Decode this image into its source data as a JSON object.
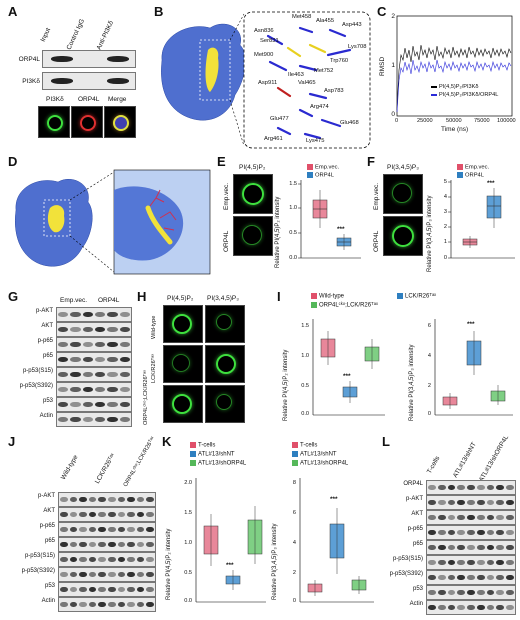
{
  "panels": {
    "A": "A",
    "B": "B",
    "C": "C",
    "D": "D",
    "E": "E",
    "F": "F",
    "G": "G",
    "H": "H",
    "I": "I",
    "J": "J",
    "K": "K",
    "L": "L"
  },
  "panelA": {
    "lanes": [
      "Input",
      "Control IgG",
      "Anti-PI3Kδ"
    ],
    "rows": [
      "ORP4L",
      "PI3Kδ"
    ],
    "micro": [
      "PI3Kδ",
      "ORP4L",
      "Merge"
    ]
  },
  "panelB": {
    "residues": [
      "Met458",
      "Ala455",
      "Asp443",
      "Asn836",
      "Ser831",
      "Lys708",
      "Trp760",
      "Met900",
      "Met752",
      "Ile463",
      "Val465",
      "Asp911",
      "Asp783",
      "Arg474",
      "Glu477",
      "Glu468",
      "Arg461",
      "Lys475"
    ]
  },
  "panelC": {
    "ylabel": "RMSD",
    "xlabel": "Time (ns)",
    "yticks": [
      "2",
      "1",
      "0"
    ],
    "xticks": [
      "0",
      "25000",
      "50000",
      "75000",
      "100000"
    ],
    "legend": [
      "PI(4,5)P₂/PI3Kδ",
      "PI(4,5)P₂/PI3Kδ/ORP4L"
    ],
    "colors": [
      "#000000",
      "#2b2bd9"
    ]
  },
  "panelE": {
    "title": "PI(4,5)P₂",
    "rowlabels": [
      "Emp.vec.",
      "ORP4L"
    ],
    "legend": [
      "Emp.vec.",
      "ORP4L"
    ],
    "ylabel": "Relative PI(4,5)P₂ intensity",
    "yticks": [
      "1.5",
      "1.0",
      "0.5",
      "0.0"
    ],
    "sig": "***"
  },
  "panelF": {
    "title": "PI(3,4,5)P₃",
    "rowlabels": [
      "Emp.vec.",
      "ORP4L"
    ],
    "legend": [
      "Emp.vec.",
      "ORP4L"
    ],
    "ylabel": "Relative PI(3,4,5)P₃ intensity",
    "yticks": [
      "5",
      "4",
      "3",
      "2",
      "1",
      "0"
    ],
    "sig": "***"
  },
  "panelG": {
    "groups": [
      "Emp.vec.",
      "ORP4L"
    ],
    "rows": [
      "p-AKT",
      "AKT",
      "p-p65",
      "p65",
      "p-p53(S15)",
      "p-p53(S392)",
      "p53",
      "Actin"
    ]
  },
  "panelH": {
    "cols": [
      "PI(4,5)P₂",
      "PI(3,4,5)P₃"
    ],
    "rows": [
      "Wild-type",
      "LCK/R26ᵀᵃˣ",
      "ORP4Lᶜᵏᵒ;LCK/R26ᵀᵃˣ"
    ]
  },
  "panelI": {
    "legend": [
      "Wild-type",
      "LCK/R26ᵀᵃˣ",
      "ORP4Lᶜᵏᵒ;LCK/R26ᵀᵃˣ"
    ],
    "colors": [
      "#e0506a",
      "#2e7fc0",
      "#55b85a"
    ],
    "ylabel1": "Relative PI(4,5)P₂ intensity",
    "ylabel2": "Relative PI(3,4,5)P₃ intensity",
    "yticks1": [
      "1.5",
      "1.0",
      "0.5",
      "0.0"
    ],
    "yticks2": [
      "6",
      "4",
      "2",
      "0"
    ],
    "sig": "***"
  },
  "panelJ": {
    "groups": [
      "Wild-type",
      "LCK/R26ᵀᵃˣ",
      "ORP4Lᶜᵏᵒ;LCK/R26ᵀᵃˣ"
    ],
    "rows": [
      "p-AKT",
      "AKT",
      "p-p65",
      "p65",
      "p-p53(S15)",
      "p-p53(S392)",
      "p53",
      "Actin"
    ]
  },
  "panelK": {
    "legend": [
      "T-cells",
      "ATL#13/shNT",
      "ATL#13/shORP4L"
    ],
    "colors": [
      "#e0506a",
      "#2e7fc0",
      "#55b85a"
    ],
    "ylabel1": "Relative PI(4,5)P₂ intensity",
    "ylabel2": "Relative PI(3,4,5)P₃ intensity",
    "yticks1": [
      "2.0",
      "1.5",
      "1.0",
      "0.5",
      "0.0"
    ],
    "yticks2": [
      "8",
      "6",
      "4",
      "2",
      "0"
    ],
    "sig": "***"
  },
  "panelL": {
    "groups": [
      "T-cells",
      "ATL#13/shNT",
      "ATL#13/shORP4L"
    ],
    "rows": [
      "ORP4L",
      "p-AKT",
      "AKT",
      "p-p65",
      "p65",
      "p-p53(S15)",
      "p-p53(S392)",
      "p53",
      "Actin"
    ]
  }
}
